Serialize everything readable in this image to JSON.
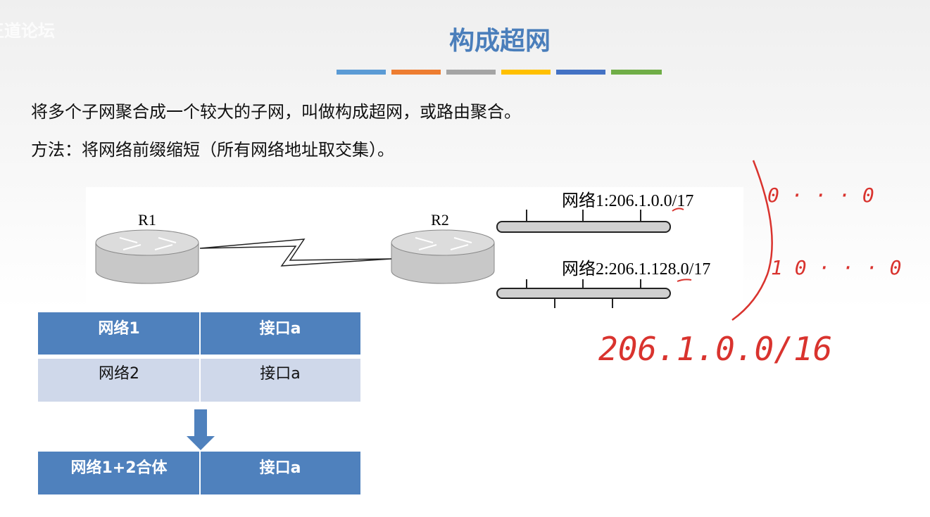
{
  "watermark": "王道论坛",
  "title": "构成超网",
  "paragraphs": [
    "将多个子网聚合成一个较大的子网，叫做构成超网，或路由聚合。",
    "方法：将网络前缀缩短（所有网络地址取交集）。"
  ],
  "diagram": {
    "routers": [
      "R1",
      "R2"
    ],
    "networks": [
      "网络1:206.1.0.0/17",
      "网络2:206.1.128.0/17"
    ]
  },
  "table": {
    "rows": [
      [
        "网络1",
        "接口a"
      ],
      [
        "网络2",
        "接口a"
      ]
    ],
    "merged": [
      "网络1+2合体",
      "接口a"
    ]
  },
  "annotations": [
    "0 · · · 0",
    "1 0 · · · 0",
    "206.1.0.0/16"
  ]
}
